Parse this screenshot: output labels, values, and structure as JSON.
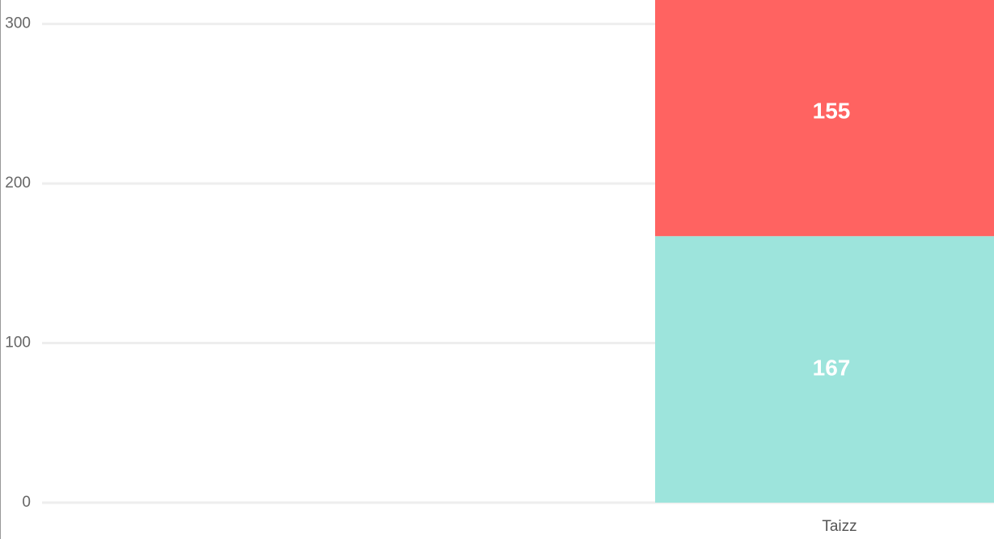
{
  "chart_data": {
    "type": "stacked_bar",
    "categories": [
      "Taizz"
    ],
    "series": [
      {
        "color": "#9de4dc",
        "values": [
          167
        ]
      },
      {
        "color": "#ff6361",
        "values": [
          155
        ]
      }
    ],
    "ylim": [
      0,
      315
    ],
    "yticks": [
      0,
      100,
      200,
      300
    ],
    "grid": true
  }
}
